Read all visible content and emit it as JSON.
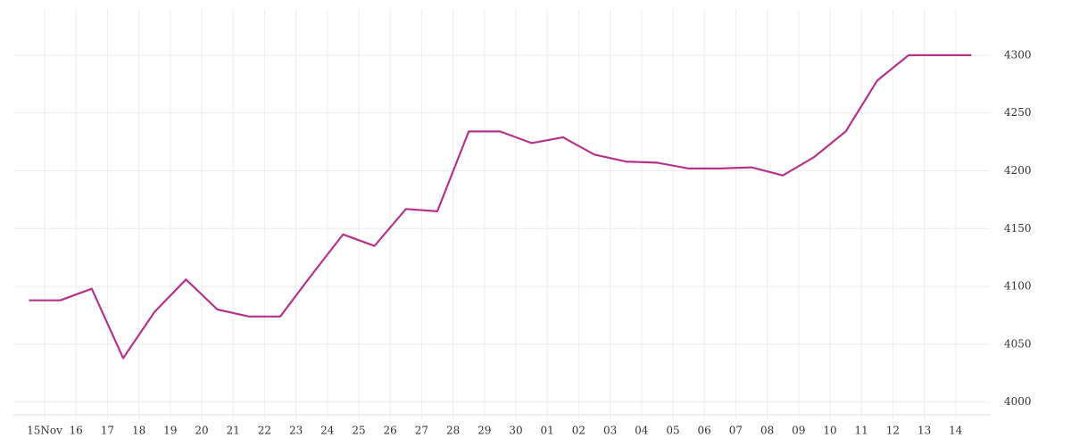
{
  "chart_data": {
    "type": "line",
    "xticks": [
      "15Nov",
      "16",
      "17",
      "18",
      "19",
      "20",
      "21",
      "22",
      "23",
      "24",
      "25",
      "26",
      "27",
      "28",
      "29",
      "30",
      "01",
      "02",
      "03",
      "04",
      "05",
      "06",
      "07",
      "08",
      "09",
      "10",
      "11",
      "12",
      "13",
      "14"
    ],
    "series": [
      {
        "color": "#b5338a",
        "values": [
          4088,
          4088,
          4098,
          4038,
          4078,
          4106,
          4080,
          4074,
          4074,
          4110,
          4145,
          4135,
          4167,
          4165,
          4234,
          4234,
          4224,
          4229,
          4214,
          4208,
          4207,
          4202,
          4202,
          4203,
          4196,
          4212,
          4234,
          4278,
          4300,
          4300,
          4300
        ]
      }
    ],
    "ylim": [
      3989,
      4340
    ],
    "yticks": [
      4000,
      4050,
      4100,
      4150,
      4200,
      4250,
      4300
    ],
    "grid": true
  }
}
